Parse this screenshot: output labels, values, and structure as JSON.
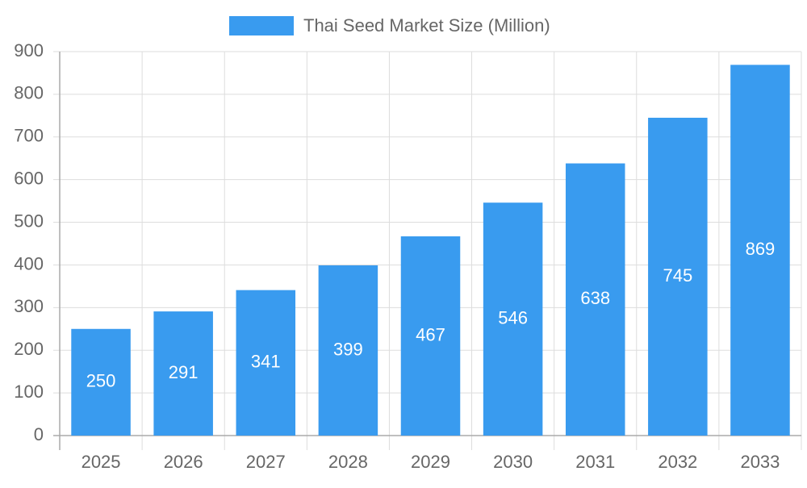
{
  "chart_data": {
    "type": "bar",
    "categories": [
      "2025",
      "2026",
      "2027",
      "2028",
      "2029",
      "2030",
      "2031",
      "2032",
      "2033"
    ],
    "series": [
      {
        "name": "Thai Seed Market Size (Million)",
        "color": "#399bef",
        "values": [
          250,
          291,
          341,
          399,
          467,
          546,
          638,
          745,
          869
        ]
      }
    ],
    "ylim": [
      0,
      900
    ],
    "yticks": [
      0,
      100,
      200,
      300,
      400,
      500,
      600,
      700,
      800,
      900
    ],
    "grid": true,
    "legend": "top",
    "data_labels": true
  }
}
